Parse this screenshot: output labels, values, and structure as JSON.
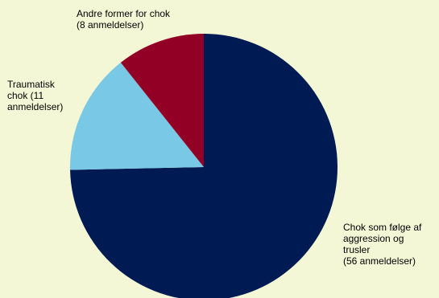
{
  "chart_data": {
    "type": "pie",
    "title": "",
    "start_angle_deg": 0,
    "direction": "clockwise",
    "slices": [
      {
        "label": [
          "Chok som følge af",
          "aggression og",
          "trusler",
          "(56 anmeldelser)"
        ],
        "value": 56,
        "color": "#001a54"
      },
      {
        "label": [
          "Traumatisk",
          "chok (11",
          "anmeldelser)"
        ],
        "value": 11,
        "color": "#78c8e6"
      },
      {
        "label": [
          "Andre former for chok",
          "(8 anmeldelser)"
        ],
        "value": 8,
        "color": "#930026"
      }
    ]
  }
}
